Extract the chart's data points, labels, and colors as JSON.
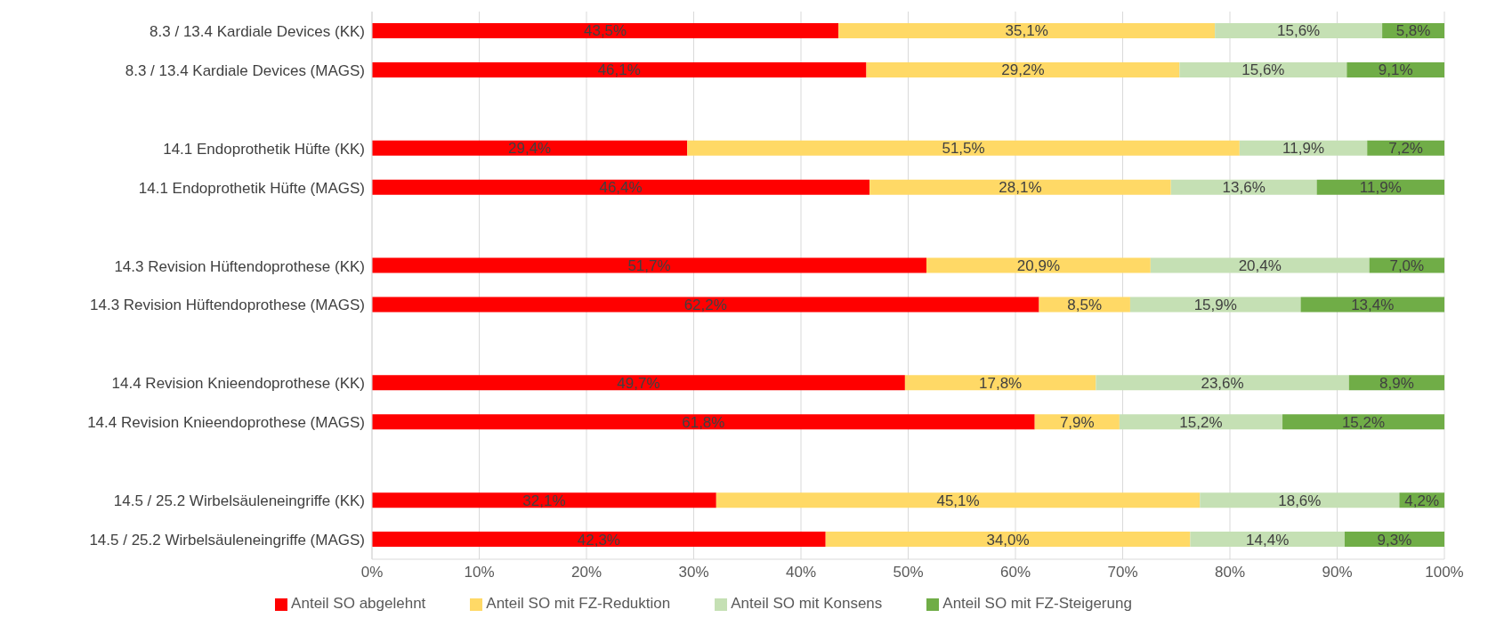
{
  "chart_data": {
    "type": "bar",
    "orientation": "horizontal",
    "stacked": true,
    "categories": [
      "8.3 / 13.4 Kardiale Devices (KK)",
      "8.3 / 13.4 Kardiale Devices (MAGS)",
      null,
      "14.1 Endoprothetik Hüfte (KK)",
      "14.1 Endoprothetik Hüfte (MAGS)",
      null,
      "14.3 Revision Hüftendoprothese (KK)",
      "14.3 Revision Hüftendoprothese (MAGS)",
      null,
      "14.4 Revision Knieendoprothese (KK)",
      "14.4 Revision Knieendoprothese (MAGS)",
      null,
      "14.5 / 25.2 Wirbelsäuleneingriffe (KK)",
      "14.5 / 25.2 Wirbelsäuleneingriffe (MAGS)"
    ],
    "series": [
      {
        "name": "Anteil SO abgelehnt",
        "color": "#ff0000",
        "values": [
          43.5,
          46.1,
          null,
          29.4,
          46.4,
          null,
          51.7,
          62.2,
          null,
          49.7,
          61.8,
          null,
          32.1,
          42.3
        ],
        "value_labels": [
          "43,5%",
          "46,1%",
          null,
          "29,4%",
          "46,4%",
          null,
          "51,7%",
          "62,2%",
          null,
          "49,7%",
          "61,8%",
          null,
          "32,1%",
          "42,3%"
        ]
      },
      {
        "name": "Anteil SO mit FZ-Reduktion",
        "color": "#ffd966",
        "values": [
          35.1,
          29.2,
          null,
          51.5,
          28.1,
          null,
          20.9,
          8.5,
          null,
          17.8,
          7.9,
          null,
          45.1,
          34.0
        ],
        "value_labels": [
          "35,1%",
          "29,2%",
          null,
          "51,5%",
          "28,1%",
          null,
          "20,9%",
          "8,5%",
          null,
          "17,8%",
          "7,9%",
          null,
          "45,1%",
          "34,0%"
        ]
      },
      {
        "name": "Anteil SO mit Konsens",
        "color": "#c5e0b4",
        "values": [
          15.6,
          15.6,
          null,
          11.9,
          13.6,
          null,
          20.4,
          15.9,
          null,
          23.6,
          15.2,
          null,
          18.6,
          14.4
        ],
        "value_labels": [
          "15,6%",
          "15,6%",
          null,
          "11,9%",
          "13,6%",
          null,
          "20,4%",
          "15,9%",
          null,
          "23,6%",
          "15,2%",
          null,
          "18,6%",
          "14,4%"
        ]
      },
      {
        "name": "Anteil SO mit FZ-Steigerung",
        "color": "#70ad47",
        "values": [
          5.8,
          9.1,
          null,
          7.2,
          11.9,
          null,
          7.0,
          13.4,
          null,
          8.9,
          15.2,
          null,
          4.2,
          9.3
        ],
        "value_labels": [
          "5,8%",
          "9,1%",
          null,
          "7,2%",
          "11,9%",
          null,
          "7,0%",
          "13,4%",
          null,
          "8,9%",
          "15,2%",
          null,
          "4,2%",
          "9,3%"
        ]
      }
    ],
    "xlim": [
      0,
      100
    ],
    "xticks": [
      {
        "value": 0,
        "label": "0%"
      },
      {
        "value": 10,
        "label": "10%"
      },
      {
        "value": 20,
        "label": "20%"
      },
      {
        "value": 30,
        "label": "30%"
      },
      {
        "value": 40,
        "label": "40%"
      },
      {
        "value": 50,
        "label": "50%"
      },
      {
        "value": 60,
        "label": "60%"
      },
      {
        "value": 70,
        "label": "70%"
      },
      {
        "value": 80,
        "label": "80%"
      },
      {
        "value": 90,
        "label": "90%"
      },
      {
        "value": 100,
        "label": "100%"
      }
    ],
    "grid": "x",
    "legend": "bottom"
  }
}
